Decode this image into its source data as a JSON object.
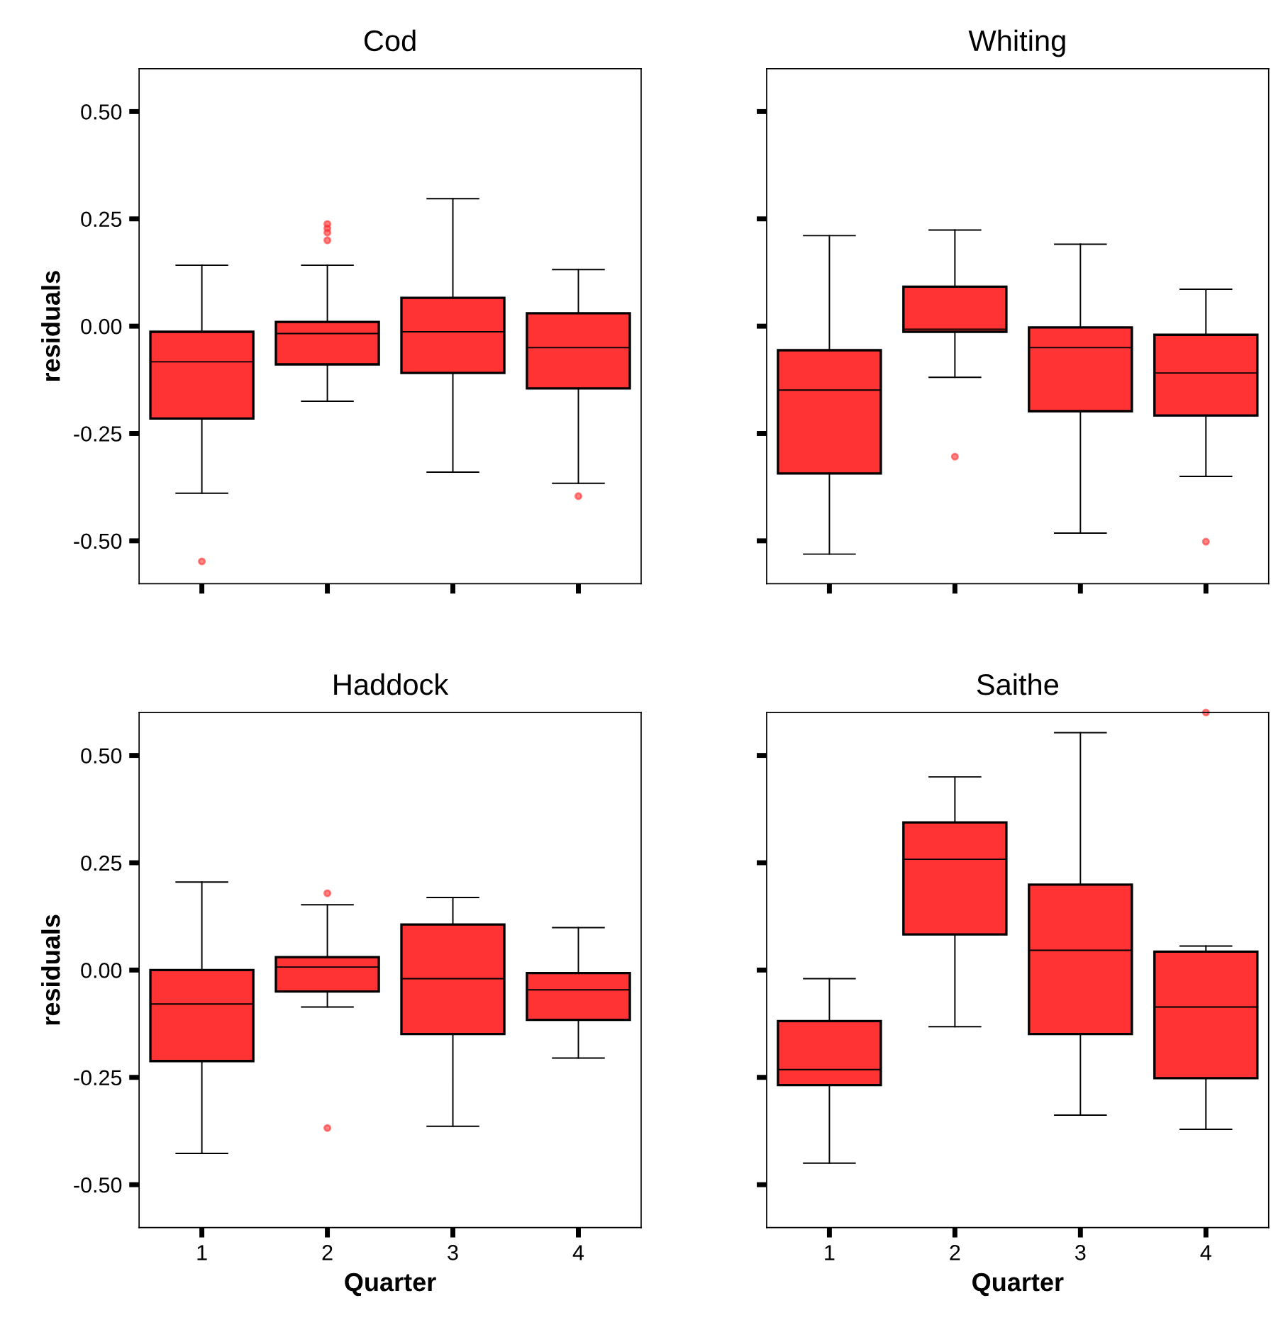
{
  "chart_data": [
    {
      "type": "box",
      "title": "Cod",
      "ylabel": "residuals",
      "categories": [
        "1",
        "2",
        "3",
        "4"
      ],
      "color": "#ff3333",
      "ylim": [
        -0.6,
        0.6
      ],
      "yticks": [
        {
          "value": -0.5,
          "label": "-0.50"
        },
        {
          "value": -0.25,
          "label": "-0.25"
        },
        {
          "value": 0,
          "label": "0.00"
        },
        {
          "value": 0.25,
          "label": "0.25"
        },
        {
          "value": 0.5,
          "label": "0.50"
        }
      ],
      "tick_labels": "y",
      "grid": false,
      "boxes": [
        {
          "low": -0.389,
          "q1": -0.215,
          "median": -0.083,
          "q3": -0.013,
          "high": 0.142,
          "outliers": [
            -0.548
          ]
        },
        {
          "low": -0.175,
          "q1": -0.089,
          "median": -0.017,
          "q3": 0.01,
          "high": 0.142,
          "outliers": [
            0.238,
            0.228,
            0.218,
            0.2
          ]
        },
        {
          "low": -0.34,
          "q1": -0.109,
          "median": -0.013,
          "q3": 0.066,
          "high": 0.297
        },
        {
          "low": -0.366,
          "q1": -0.145,
          "median": -0.05,
          "q3": 0.03,
          "high": 0.132,
          "outliers": [
            -0.396
          ]
        }
      ]
    },
    {
      "type": "box",
      "title": "Whiting",
      "categories": [
        "1",
        "2",
        "3",
        "4"
      ],
      "color": "#ff3333",
      "ylim": [
        -0.6,
        0.6
      ],
      "yticks": [
        {
          "value": -0.5,
          "label": null
        },
        {
          "value": -0.25,
          "label": null
        },
        {
          "value": 0,
          "label": null
        },
        {
          "value": 0.25,
          "label": null
        },
        {
          "value": 0.5,
          "label": null
        }
      ],
      "tick_labels": false,
      "grid": false,
      "boxes": [
        {
          "low": -0.531,
          "q1": -0.343,
          "median": -0.149,
          "q3": -0.056,
          "high": 0.211
        },
        {
          "low": -0.119,
          "q1": -0.013,
          "median": -0.007,
          "q3": 0.092,
          "high": 0.224,
          "outliers": [
            -0.304
          ]
        },
        {
          "low": -0.482,
          "q1": -0.198,
          "median": -0.05,
          "q3": -0.003,
          "high": 0.191
        },
        {
          "low": -0.35,
          "q1": -0.208,
          "median": -0.109,
          "q3": -0.02,
          "high": 0.086,
          "outliers": [
            -0.502
          ]
        }
      ]
    },
    {
      "type": "box",
      "title": "Haddock",
      "xlabel": "Quarter",
      "ylabel": "residuals",
      "categories": [
        "1",
        "2",
        "3",
        "4"
      ],
      "color": "#ff3333",
      "ylim": [
        -0.6,
        0.6
      ],
      "yticks": [
        {
          "value": -0.5,
          "label": "-0.50"
        },
        {
          "value": -0.25,
          "label": "-0.25"
        },
        {
          "value": 0,
          "label": "0.00"
        },
        {
          "value": 0.25,
          "label": "0.25"
        },
        {
          "value": 0.5,
          "label": "0.50"
        }
      ],
      "grid": false,
      "boxes": [
        {
          "low": -0.427,
          "q1": -0.212,
          "median": -0.079,
          "q3": 0.0,
          "high": 0.205
        },
        {
          "low": -0.086,
          "q1": -0.05,
          "median": 0.007,
          "q3": 0.03,
          "high": 0.152,
          "outliers": [
            0.179,
            -0.368
          ]
        },
        {
          "low": -0.364,
          "q1": -0.149,
          "median": -0.02,
          "q3": 0.106,
          "high": 0.169
        },
        {
          "low": -0.205,
          "q1": -0.116,
          "median": -0.046,
          "q3": -0.007,
          "high": 0.099
        }
      ]
    },
    {
      "type": "box",
      "title": "Saithe",
      "xlabel": "Quarter",
      "categories": [
        "1",
        "2",
        "3",
        "4"
      ],
      "color": "#ff3333",
      "ylim": [
        -0.6,
        0.6
      ],
      "yticks": [
        {
          "value": -0.5,
          "label": null
        },
        {
          "value": -0.25,
          "label": null
        },
        {
          "value": 0,
          "label": null
        },
        {
          "value": 0.25,
          "label": null
        },
        {
          "value": 0.5,
          "label": null
        }
      ],
      "tick_labels": "x",
      "grid": false,
      "boxes": [
        {
          "low": -0.45,
          "q1": -0.268,
          "median": -0.232,
          "q3": -0.119,
          "high": -0.02
        },
        {
          "low": -0.132,
          "q1": 0.083,
          "median": 0.258,
          "q3": 0.344,
          "high": 0.45
        },
        {
          "low": -0.338,
          "q1": -0.149,
          "median": 0.046,
          "q3": 0.199,
          "high": 0.553
        },
        {
          "low": -0.371,
          "q1": -0.252,
          "median": -0.086,
          "q3": 0.043,
          "high": 0.056,
          "outliers": [
            0.6
          ]
        }
      ]
    }
  ]
}
